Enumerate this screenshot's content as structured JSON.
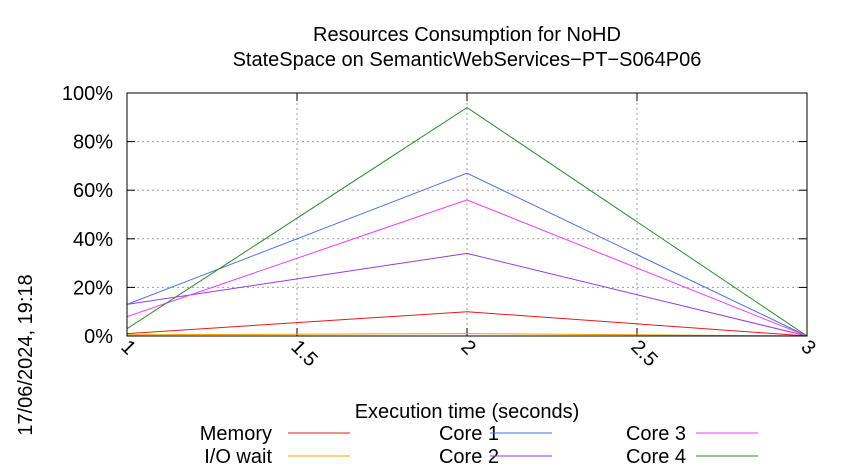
{
  "chart_data": {
    "type": "line",
    "title": "Resources Consumption for NoHD",
    "subtitle": "StateSpace on SemanticWebServices−PT−S064P06",
    "xlabel": "Execution time (seconds)",
    "ylabel": "",
    "timestamp": "17/06/2024, 19:18",
    "xlim": [
      1,
      3
    ],
    "ylim": [
      0,
      100
    ],
    "x_ticks": [
      "1",
      "1.5",
      "2",
      "2.5",
      "3"
    ],
    "y_ticks": [
      "0%",
      "20%",
      "40%",
      "60%",
      "80%",
      "100%"
    ],
    "grid": true,
    "legend_position": "bottom",
    "x": [
      1,
      2,
      3
    ],
    "series": [
      {
        "name": "Memory",
        "color": "#e41a1c",
        "values": [
          1,
          10,
          0
        ]
      },
      {
        "name": "I/O wait",
        "color": "#f0a000",
        "values": [
          0.5,
          1,
          0
        ]
      },
      {
        "name": "Core 1",
        "color": "#4a72d8",
        "values": [
          13,
          67,
          0
        ]
      },
      {
        "name": "Core 2",
        "color": "#9a38e8",
        "values": [
          13,
          34,
          0
        ]
      },
      {
        "name": "Core 3",
        "color": "#f040f0",
        "values": [
          8,
          56,
          0
        ]
      },
      {
        "name": "Core 4",
        "color": "#2a8a2a",
        "values": [
          3,
          94,
          0
        ]
      }
    ]
  }
}
